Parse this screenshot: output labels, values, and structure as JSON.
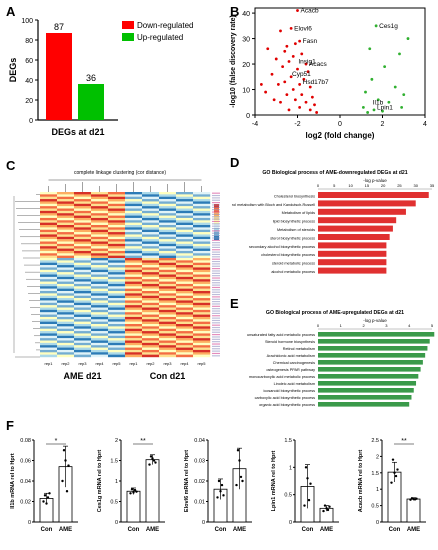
{
  "panels": [
    "A",
    "B",
    "C",
    "D",
    "E",
    "F"
  ],
  "chart_data": [
    {
      "id": "A",
      "type": "bar",
      "categories": [
        "Down-regulated",
        "Up-regulated"
      ],
      "values": [
        87,
        36
      ],
      "colors": [
        "#ff0000",
        "#00c000"
      ],
      "ylabel": "DEGs",
      "xlabel": "DEGs at d21",
      "ylim": [
        0,
        100
      ],
      "yticks": [
        0,
        20,
        40,
        60,
        80,
        100
      ],
      "legend": [
        {
          "label": "Down-regulated",
          "color": "#ff0000"
        },
        {
          "label": "Up-regulated",
          "color": "#00c000"
        }
      ]
    },
    {
      "id": "B",
      "type": "scatter",
      "xlabel": "log2 (fold change)",
      "ylabel": "-log10 (false discovery rate)",
      "xlim": [
        -4,
        4
      ],
      "ylim": [
        0,
        42
      ],
      "xticks": [
        -4,
        -2,
        0,
        2,
        4
      ],
      "yticks": [
        0,
        10,
        20,
        30,
        40
      ],
      "series": [
        {
          "color": "#e00000",
          "points": [
            [
              -2.0,
              41
            ],
            [
              -2.3,
              34
            ],
            [
              -2.8,
              33
            ],
            [
              -1.9,
              29
            ],
            [
              -2.1,
              28
            ],
            [
              -2.5,
              27
            ],
            [
              -3.4,
              26
            ],
            [
              -2.6,
              25
            ],
            [
              -1.8,
              24
            ],
            [
              -2.2,
              23
            ],
            [
              -3.0,
              22
            ],
            [
              -2.4,
              21
            ],
            [
              -1.6,
              20
            ],
            [
              -2.7,
              19
            ],
            [
              -2.0,
              18
            ],
            [
              -1.5,
              17
            ],
            [
              -3.2,
              16
            ],
            [
              -2.3,
              15
            ],
            [
              -1.7,
              14
            ],
            [
              -2.6,
              13
            ],
            [
              -1.9,
              12
            ],
            [
              -2.9,
              12
            ],
            [
              -1.4,
              11
            ],
            [
              -2.2,
              10
            ],
            [
              -3.5,
              9
            ],
            [
              -1.8,
              8
            ],
            [
              -2.5,
              8
            ],
            [
              -1.3,
              7
            ],
            [
              -2.1,
              6
            ],
            [
              -1.6,
              5
            ],
            [
              -2.8,
              5
            ],
            [
              -1.2,
              4
            ],
            [
              -1.9,
              3
            ],
            [
              -1.4,
              2
            ],
            [
              -2.4,
              2
            ],
            [
              -1.1,
              1
            ],
            [
              -3.7,
              12
            ],
            [
              -3.1,
              6
            ]
          ]
        },
        {
          "color": "#30b030",
          "points": [
            [
              1.7,
              35
            ],
            [
              3.2,
              30
            ],
            [
              2.8,
              24
            ],
            [
              1.4,
              26
            ],
            [
              2.1,
              19
            ],
            [
              1.5,
              14
            ],
            [
              2.6,
              11
            ],
            [
              1.2,
              9
            ],
            [
              3.0,
              8
            ],
            [
              1.8,
              6
            ],
            [
              2.3,
              5
            ],
            [
              1.1,
              3
            ],
            [
              1.6,
              2
            ],
            [
              2.0,
              1.5
            ],
            [
              1.3,
              1
            ],
            [
              2.9,
              3
            ]
          ]
        }
      ],
      "labels": [
        {
          "text": "Acacb",
          "x": -2.0,
          "y": 41
        },
        {
          "text": "Elovl6",
          "x": -2.3,
          "y": 34
        },
        {
          "text": "Fasn",
          "x": -1.9,
          "y": 29
        },
        {
          "text": "Ces1g",
          "x": 1.7,
          "y": 35
        },
        {
          "text": "Insig1",
          "x": -2.1,
          "y": 21
        },
        {
          "text": "Acacs",
          "x": -1.6,
          "y": 20
        },
        {
          "text": "Cyp51",
          "x": -2.4,
          "y": 16
        },
        {
          "text": "Hsd17b7",
          "x": -1.9,
          "y": 13
        },
        {
          "text": "Il1b",
          "x": 1.4,
          "y": 5
        },
        {
          "text": "Lpin1",
          "x": 1.6,
          "y": 3
        }
      ]
    },
    {
      "id": "C",
      "type": "heatmap",
      "title": "complete linkage clustering (cor distance)",
      "groups": [
        "AME d21",
        "Con d21"
      ],
      "columns": [
        "rep1",
        "rep2",
        "rep3",
        "rep4",
        "rep5",
        "rep1",
        "rep2",
        "rep3",
        "rep4",
        "rep5"
      ]
    },
    {
      "id": "D",
      "type": "bar",
      "orientation": "horizontal",
      "title": "GO Biological process of AME-downregulated DEGs at d21",
      "xlabel": "-log p-value",
      "xlim": [
        0,
        35
      ],
      "xticks": [
        0,
        5,
        10,
        15,
        20,
        25,
        30,
        35
      ],
      "color": "#e03030",
      "categories": [
        "Cholesterol biosynthesis",
        "Cholesterol metabolism with Bloch and Kandutsch-Russell",
        "Metabolism of lipids",
        "lipid biosynthetic process",
        "Metabolism of steroids",
        "sterol biosynthetic process",
        "secondary alcohol biosynthetic process",
        "cholesterol biosynthetic process",
        "steroid metabolic process",
        "alcohol metabolic process"
      ],
      "values": [
        34,
        30,
        27,
        24,
        23,
        22,
        21,
        21,
        21,
        21
      ]
    },
    {
      "id": "E",
      "type": "bar",
      "orientation": "horizontal",
      "title": "GO Biological process of AME-upregulated DEGs at d21",
      "xlabel": "-log p-value",
      "xlim": [
        0,
        5
      ],
      "xticks": [
        0,
        1,
        2,
        3,
        4,
        5
      ],
      "color": "#3a9a4a",
      "categories": [
        "unsaturated fatty acid metabolic process",
        "Steroid hormone biosynthesis",
        "Retinol metabolism",
        "Arachidonic acid metabolism",
        "Chemical carcinogenesis",
        "osteogenesis PPAR pathway",
        "monocarboxylic acid metabolic process",
        "Linoleic acid metabolism",
        "icosanoid biosynthetic process",
        "carboxylic acid biosynthetic process",
        "organic acid biosynthetic process"
      ],
      "values": [
        5.1,
        4.9,
        4.8,
        4.7,
        4.6,
        4.5,
        4.4,
        4.3,
        4.2,
        4.1,
        4.0
      ]
    },
    {
      "id": "F",
      "type": "bar",
      "categories": [
        "Con",
        "AME"
      ],
      "subplots": [
        {
          "ylabel": "Il1b mRNA rel to Hprt",
          "ylim": [
            0,
            0.08
          ],
          "yticks": [
            0,
            0.02,
            0.04,
            0.06,
            0.08
          ],
          "values": [
            0.023,
            0.054
          ],
          "err": [
            0.005,
            0.02
          ],
          "sig": "*",
          "points": [
            [
              0.02,
              0.026,
              0.018,
              0.024,
              0.028
            ],
            [
              0.04,
              0.07,
              0.06,
              0.03,
              0.055
            ]
          ]
        },
        {
          "ylabel": "Ces1g mRNA rel to Hprt",
          "ylim": [
            0,
            2
          ],
          "yticks": [
            0,
            0.5,
            1.0,
            1.5,
            2.0
          ],
          "values": [
            0.75,
            1.52
          ],
          "err": [
            0.08,
            0.12
          ],
          "sig": "**",
          "points": [
            [
              0.7,
              0.8,
              0.72,
              0.78,
              0.74
            ],
            [
              1.4,
              1.6,
              1.55,
              1.5,
              1.45
            ]
          ]
        },
        {
          "ylabel": "Elovl6 mRNA rel to Hprt",
          "ylim": [
            0,
            0.04
          ],
          "yticks": [
            0,
            0.01,
            0.02,
            0.03,
            0.04
          ],
          "values": [
            0.016,
            0.026
          ],
          "err": [
            0.005,
            0.01
          ],
          "sig": "",
          "points": [
            [
              0.012,
              0.02,
              0.015,
              0.018,
              0.013
            ],
            [
              0.018,
              0.035,
              0.03,
              0.022,
              0.02
            ]
          ]
        },
        {
          "ylabel": "Lpin1 mRNA rel to Hprt",
          "ylim": [
            0,
            1.5
          ],
          "yticks": [
            0,
            0.5,
            1.0,
            1.5
          ],
          "values": [
            0.65,
            0.25
          ],
          "err": [
            0.4,
            0.05
          ],
          "sig": "",
          "points": [
            [
              0.3,
              1.0,
              0.8,
              0.4,
              0.7
            ],
            [
              0.2,
              0.3,
              0.25,
              0.22,
              0.28
            ]
          ]
        },
        {
          "ylabel": "Acacb mRNA rel to Hprt",
          "ylim": [
            0,
            2.5
          ],
          "yticks": [
            0,
            0.5,
            1.0,
            1.5,
            2.0,
            2.5
          ],
          "values": [
            1.52,
            0.7
          ],
          "err": [
            0.3,
            0.04
          ],
          "sig": "**",
          "points": [
            [
              1.2,
              1.9,
              1.5,
              1.4,
              1.6
            ],
            [
              0.68,
              0.72,
              0.7,
              0.69,
              0.71
            ]
          ]
        }
      ]
    }
  ]
}
